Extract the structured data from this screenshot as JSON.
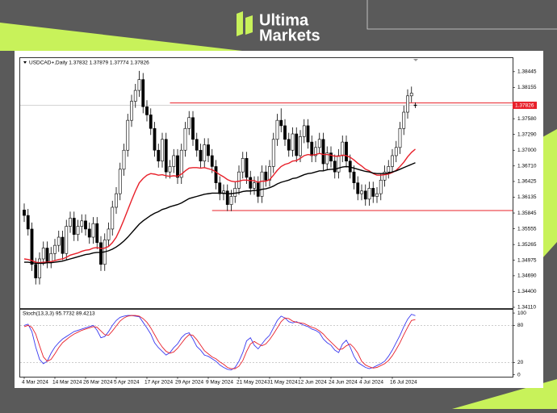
{
  "brand": [
    "Ultima",
    "Markets"
  ],
  "chart_data": {
    "type": "candlestick",
    "title": "USDCAD+,Daily  1.37832 1.37879 1.37774 1.37826",
    "categories": [
      "4 Mar 2024",
      null,
      null,
      null,
      null,
      null,
      null,
      null,
      "14 Mar 2024",
      null,
      null,
      null,
      null,
      null,
      null,
      null,
      "26 Mar 2024",
      null,
      null,
      null,
      null,
      null,
      null,
      null,
      "5 Apr 2024",
      null,
      null,
      null,
      null,
      null,
      null,
      null,
      "17 Apr 2024",
      null,
      null,
      null,
      null,
      null,
      null,
      null,
      "29 Apr 2024",
      null,
      null,
      null,
      null,
      null,
      null,
      null,
      "9 May 2024",
      null,
      null,
      null,
      null,
      null,
      null,
      null,
      "21 May 2024",
      null,
      null,
      null,
      null,
      null,
      null,
      null,
      "31 May 2024",
      null,
      null,
      null,
      null,
      null,
      null,
      null,
      "12 Jun 2024",
      null,
      null,
      null,
      null,
      null,
      null,
      null,
      "24 Jun 2024",
      null,
      null,
      null,
      null,
      null,
      null,
      null,
      "4 Jul 2024",
      null,
      null,
      null,
      null,
      null,
      null,
      null,
      "16 Jul 2024",
      null,
      null,
      null,
      null,
      null,
      null
    ],
    "open": [
      1.359,
      1.358,
      1.3555,
      1.349,
      1.3465,
      1.35,
      1.352,
      1.3495,
      1.351,
      1.3525,
      1.354,
      1.351,
      1.356,
      1.3575,
      1.3545,
      1.356,
      1.357,
      1.3555,
      1.354,
      1.3565,
      1.353,
      1.349,
      1.3535,
      1.3555,
      1.3595,
      1.362,
      1.3665,
      1.37,
      1.3755,
      1.379,
      1.381,
      1.383,
      1.378,
      1.3765,
      1.374,
      1.37,
      1.368,
      1.372,
      1.366,
      1.367,
      1.369,
      1.365,
      1.37,
      1.374,
      1.376,
      1.372,
      1.37,
      1.368,
      1.371,
      1.369,
      1.367,
      1.364,
      1.362,
      1.3625,
      1.36,
      1.3615,
      1.363,
      1.366,
      1.3685,
      1.365,
      1.363,
      1.364,
      1.3615,
      1.366,
      1.3645,
      1.367,
      1.372,
      1.3755,
      1.3745,
      1.372,
      1.37,
      1.373,
      1.369,
      1.3725,
      1.3745,
      1.3715,
      1.369,
      1.3705,
      1.372,
      1.3675,
      1.3695,
      1.368,
      1.366,
      1.369,
      1.3715,
      1.368,
      1.366,
      1.364,
      1.362,
      1.3625,
      1.361,
      1.363,
      1.3615,
      1.362,
      1.3645,
      1.366,
      1.367,
      1.369,
      1.3705,
      1.374,
      1.377,
      1.38,
      1.37832
    ],
    "high": [
      1.3602,
      1.3592,
      1.3567,
      1.3502,
      1.3512,
      1.3532,
      1.3532,
      1.3522,
      1.3537,
      1.3552,
      1.3552,
      1.3572,
      1.3587,
      1.3587,
      1.3572,
      1.3582,
      1.3582,
      1.3567,
      1.3577,
      1.3577,
      1.3542,
      1.3547,
      1.3567,
      1.3607,
      1.3632,
      1.3677,
      1.3712,
      1.3767,
      1.3802,
      1.3822,
      1.3846,
      1.3842,
      1.3792,
      1.3777,
      1.3752,
      1.3712,
      1.3732,
      1.3732,
      1.3682,
      1.3702,
      1.3702,
      1.3712,
      1.3752,
      1.3772,
      1.3772,
      1.3732,
      1.3712,
      1.3722,
      1.3722,
      1.3702,
      1.3682,
      1.3652,
      1.3637,
      1.3637,
      1.3627,
      1.3642,
      1.3672,
      1.3697,
      1.3697,
      1.3662,
      1.3652,
      1.3652,
      1.3672,
      1.3672,
      1.3682,
      1.3732,
      1.3767,
      1.3777,
      1.3757,
      1.3732,
      1.3742,
      1.3742,
      1.3737,
      1.3757,
      1.3757,
      1.3727,
      1.3717,
      1.3732,
      1.3732,
      1.3707,
      1.3707,
      1.3692,
      1.3702,
      1.3727,
      1.3727,
      1.3692,
      1.3672,
      1.3652,
      1.3637,
      1.3637,
      1.3642,
      1.3642,
      1.3632,
      1.3657,
      1.3672,
      1.3682,
      1.3702,
      1.3717,
      1.3752,
      1.3782,
      1.3812,
      1.3817,
      1.37879
    ],
    "low": [
      1.3568,
      1.3543,
      1.3478,
      1.3453,
      1.3453,
      1.3488,
      1.3483,
      1.3483,
      1.3498,
      1.3513,
      1.3498,
      1.3498,
      1.3548,
      1.3533,
      1.3533,
      1.3548,
      1.3543,
      1.3528,
      1.3528,
      1.3518,
      1.3478,
      1.3478,
      1.3523,
      1.3543,
      1.3583,
      1.3608,
      1.3653,
      1.3688,
      1.3743,
      1.3778,
      1.3798,
      1.3768,
      1.3753,
      1.3728,
      1.3688,
      1.3668,
      1.3668,
      1.3648,
      1.3648,
      1.3658,
      1.3638,
      1.3638,
      1.3688,
      1.3728,
      1.3708,
      1.3688,
      1.3668,
      1.3668,
      1.3678,
      1.3658,
      1.3628,
      1.3608,
      1.3608,
      1.3588,
      1.3588,
      1.3603,
      1.3618,
      1.3648,
      1.3638,
      1.3618,
      1.3618,
      1.3603,
      1.3603,
      1.3633,
      1.3633,
      1.3658,
      1.3708,
      1.3733,
      1.3708,
      1.3688,
      1.3688,
      1.3678,
      1.3678,
      1.3713,
      1.3703,
      1.3678,
      1.3678,
      1.3693,
      1.3663,
      1.3663,
      1.3668,
      1.3648,
      1.3648,
      1.3678,
      1.3668,
      1.3648,
      1.3628,
      1.3608,
      1.3608,
      1.3598,
      1.3598,
      1.3603,
      1.3603,
      1.3608,
      1.3633,
      1.3648,
      1.3658,
      1.3678,
      1.3693,
      1.3728,
      1.3758,
      1.3788,
      1.37774
    ],
    "close": [
      1.358,
      1.3555,
      1.349,
      1.3465,
      1.35,
      1.352,
      1.3495,
      1.351,
      1.3525,
      1.354,
      1.351,
      1.356,
      1.3575,
      1.3545,
      1.356,
      1.357,
      1.3555,
      1.354,
      1.3565,
      1.353,
      1.349,
      1.3535,
      1.3555,
      1.3595,
      1.362,
      1.3665,
      1.37,
      1.3755,
      1.379,
      1.381,
      1.383,
      1.378,
      1.3765,
      1.374,
      1.37,
      1.368,
      1.372,
      1.366,
      1.367,
      1.369,
      1.365,
      1.37,
      1.374,
      1.376,
      1.372,
      1.37,
      1.368,
      1.371,
      1.369,
      1.367,
      1.364,
      1.362,
      1.3625,
      1.36,
      1.3615,
      1.363,
      1.366,
      1.3685,
      1.365,
      1.363,
      1.364,
      1.3615,
      1.366,
      1.3645,
      1.367,
      1.372,
      1.3755,
      1.3745,
      1.372,
      1.37,
      1.373,
      1.369,
      1.3725,
      1.3745,
      1.3715,
      1.369,
      1.3705,
      1.372,
      1.3675,
      1.3695,
      1.368,
      1.366,
      1.369,
      1.3715,
      1.368,
      1.366,
      1.364,
      1.362,
      1.3625,
      1.361,
      1.363,
      1.3615,
      1.362,
      1.3645,
      1.366,
      1.367,
      1.369,
      1.3705,
      1.374,
      1.377,
      1.38,
      1.3805,
      1.37826
    ],
    "up_color": "#ffffff",
    "down_color": "#000000",
    "series": [
      {
        "color": "#e8202a",
        "values": [
          1.35,
          1.3499,
          1.3497,
          1.3494,
          1.3493,
          1.3494,
          1.3494,
          1.3495,
          1.3497,
          1.3499,
          1.35,
          1.3503,
          1.3507,
          1.3509,
          1.3511,
          1.3514,
          1.3516,
          1.3517,
          1.352,
          1.3521,
          1.3519,
          1.352,
          1.3523,
          1.353,
          1.354,
          1.3555,
          1.3572,
          1.359,
          1.3608,
          1.3625,
          1.364,
          1.3648,
          1.3654,
          1.3657,
          1.3656,
          1.3654,
          1.3655,
          1.3653,
          1.3652,
          1.3653,
          1.3652,
          1.3656,
          1.3662,
          1.3667,
          1.3668,
          1.3668,
          1.3667,
          1.3668,
          1.3666,
          1.3664,
          1.366,
          1.3655,
          1.3651,
          1.3646,
          1.3643,
          1.3642,
          1.3643,
          1.3645,
          1.3645,
          1.3644,
          1.3644,
          1.3641,
          1.3643,
          1.3643,
          1.3646,
          1.3654,
          1.3663,
          1.367,
          1.3674,
          1.3676,
          1.368,
          1.3681,
          1.3685,
          1.369,
          1.3692,
          1.3691,
          1.3692,
          1.3694,
          1.3692,
          1.3692,
          1.3691,
          1.3689,
          1.3689,
          1.3691,
          1.369,
          1.3687,
          1.3682,
          1.3676,
          1.3671,
          1.3665,
          1.3662,
          1.3657,
          1.3654,
          1.3654,
          1.3655,
          1.3656,
          1.3659,
          1.3663,
          1.367,
          1.3678,
          1.3688,
          1.3696,
          1.3702
        ]
      },
      {
        "color": "#000000",
        "values": [
          1.3494,
          1.3494,
          1.3493,
          1.3492,
          1.3492,
          1.3492,
          1.3493,
          1.3493,
          1.3494,
          1.3495,
          1.3496,
          1.3498,
          1.35,
          1.3502,
          1.3504,
          1.3506,
          1.3508,
          1.3509,
          1.3511,
          1.3512,
          1.3512,
          1.3513,
          1.3515,
          1.3518,
          1.3522,
          1.3527,
          1.3533,
          1.354,
          1.3548,
          1.3556,
          1.3564,
          1.357,
          1.3575,
          1.358,
          1.3584,
          1.3587,
          1.3591,
          1.3593,
          1.3596,
          1.3598,
          1.36,
          1.3603,
          1.3607,
          1.3611,
          1.3613,
          1.3615,
          1.3617,
          1.3619,
          1.362,
          1.3621,
          1.3621,
          1.3621,
          1.3621,
          1.362,
          1.362,
          1.3621,
          1.3622,
          1.3624,
          1.3625,
          1.3625,
          1.3626,
          1.3626,
          1.3628,
          1.3629,
          1.3631,
          1.3634,
          1.3638,
          1.3641,
          1.3643,
          1.3645,
          1.3648,
          1.3649,
          1.3652,
          1.3655,
          1.3657,
          1.3658,
          1.366,
          1.3662,
          1.3662,
          1.3664,
          1.3665,
          1.3665,
          1.3667,
          1.3669,
          1.367,
          1.3669,
          1.3667,
          1.3665,
          1.3663,
          1.3661,
          1.366,
          1.3658,
          1.3657,
          1.3657,
          1.3657,
          1.3658,
          1.366,
          1.3662,
          1.3665,
          1.3668,
          1.3671,
          1.3674,
          1.3677
        ]
      }
    ],
    "levels": [
      1.3787,
      1.3589
    ],
    "level_color": "#e8202a",
    "ylim": [
      1.3408,
      1.3868
    ],
    "yticks": [
      1.38445,
      1.38155,
      {
        "value": 1.3758,
        "label": "1.37580"
      },
      {
        "value": 1.3729,
        "label": "1.37290"
      },
      {
        "value": 1.37,
        "label": "1.37000"
      },
      {
        "value": 1.3671,
        "label": "1.36710"
      },
      1.36425,
      1.36135,
      1.35845,
      1.35555,
      1.35265,
      1.34975,
      {
        "value": 1.3469,
        "label": "1.34690"
      },
      {
        "value": 1.344,
        "label": "1.34400"
      },
      {
        "value": 1.3411,
        "label": "1.34110"
      }
    ],
    "oscillator": {
      "title": "Stoch(13,3,3) 95.7732 89.4213",
      "ylim": [
        -3,
        104
      ],
      "yticks": [
        100,
        80,
        20,
        0
      ],
      "series": [
        {
          "color": "#3a3af0",
          "values": [
            80,
            82,
            70,
            45,
            25,
            18,
            22,
            35,
            45,
            52,
            58,
            62,
            66,
            70,
            72,
            74,
            76,
            78,
            80,
            72,
            60,
            62,
            70,
            80,
            88,
            93,
            95,
            96,
            96,
            95,
            94,
            85,
            76,
            66,
            52,
            44,
            38,
            32,
            36,
            44,
            50,
            60,
            66,
            68,
            58,
            46,
            40,
            32,
            30,
            26,
            22,
            16,
            12,
            9,
            8,
            12,
            22,
            36,
            55,
            60,
            48,
            42,
            50,
            58,
            64,
            76,
            88,
            95,
            92,
            86,
            84,
            86,
            83,
            80,
            78,
            74,
            72,
            68,
            58,
            52,
            48,
            40,
            36,
            50,
            56,
            45,
            30,
            20,
            16,
            12,
            10,
            12,
            15,
            18,
            22,
            30,
            40,
            52,
            64,
            78,
            90,
            98,
            95.7732
          ]
        },
        {
          "color": "#e8202a",
          "values": [
            78,
            80,
            77,
            66,
            47,
            29,
            22,
            25,
            34,
            44,
            52,
            57,
            62,
            66,
            69,
            72,
            74,
            76,
            78,
            77,
            71,
            65,
            64,
            71,
            79,
            87,
            92,
            95,
            96,
            96,
            95,
            91,
            85,
            76,
            65,
            54,
            45,
            38,
            35,
            37,
            43,
            51,
            59,
            65,
            64,
            57,
            48,
            39,
            34,
            29,
            26,
            21,
            17,
            12,
            10,
            10,
            14,
            23,
            38,
            50,
            54,
            50,
            47,
            50,
            57,
            66,
            76,
            86,
            92,
            91,
            87,
            85,
            84,
            83,
            80,
            77,
            75,
            71,
            66,
            59,
            53,
            47,
            41,
            42,
            47,
            50,
            44,
            35,
            22,
            16,
            13,
            11,
            12,
            15,
            18,
            23,
            31,
            41,
            52,
            65,
            77,
            88,
            89.4213
          ]
        }
      ]
    }
  }
}
